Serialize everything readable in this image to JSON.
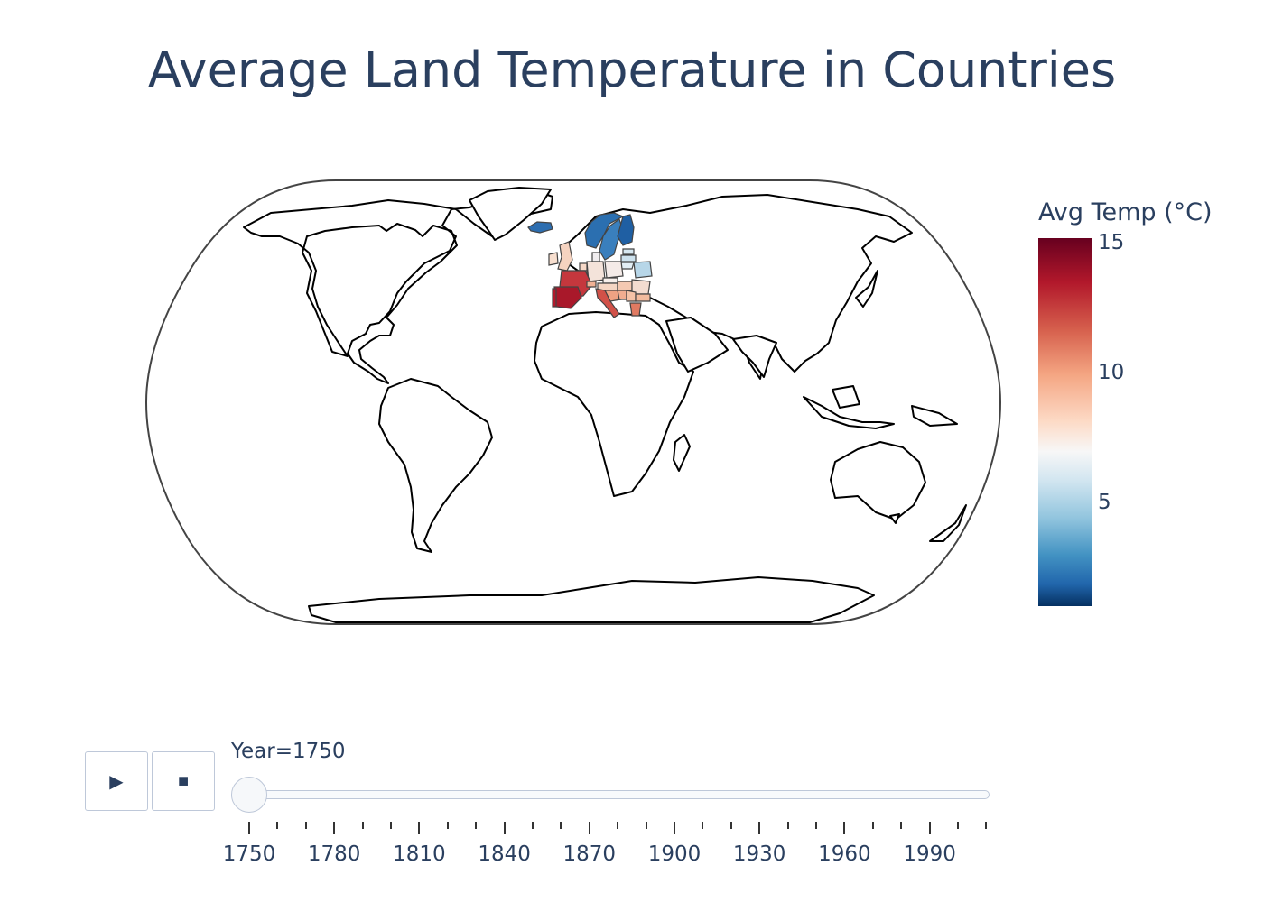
{
  "title": "Average Land Temperature in Countries",
  "colorbar": {
    "title": "Avg Temp (°C)",
    "ticks": [
      {
        "value": 15,
        "label": "15"
      },
      {
        "value": 10,
        "label": "10"
      },
      {
        "value": 5,
        "label": "5"
      }
    ],
    "range": [
      1,
      15
    ],
    "colorscale": "RdBu_r",
    "colors": [
      "#67001f",
      "#b2182b",
      "#d6604d",
      "#f4a582",
      "#fddbc7",
      "#f7f7f7",
      "#d1e5f0",
      "#92c5de",
      "#4393c3",
      "#2166ac",
      "#053061"
    ]
  },
  "map": {
    "projection": "natural earth",
    "shaded_countries": [
      {
        "name": "Spain",
        "temp": 14.5
      },
      {
        "name": "Portugal",
        "temp": 14.8
      },
      {
        "name": "Italy",
        "temp": 13.2
      },
      {
        "name": "France",
        "temp": 12.3
      },
      {
        "name": "Greece",
        "temp": 12.8
      },
      {
        "name": "Croatia",
        "temp": 11.2
      },
      {
        "name": "Serbia",
        "temp": 10.6
      },
      {
        "name": "Bosnia",
        "temp": 10.8
      },
      {
        "name": "Hungary",
        "temp": 10.2
      },
      {
        "name": "Bulgaria",
        "temp": 10.5
      },
      {
        "name": "Romania",
        "temp": 9.6
      },
      {
        "name": "Switzerland",
        "temp": 11.0
      },
      {
        "name": "Austria",
        "temp": 9.8
      },
      {
        "name": "Germany",
        "temp": 9.1
      },
      {
        "name": "Belgium",
        "temp": 10.4
      },
      {
        "name": "Netherlands",
        "temp": 9.6
      },
      {
        "name": "United Kingdom",
        "temp": 9.4
      },
      {
        "name": "Ireland",
        "temp": 9.9
      },
      {
        "name": "Czechia",
        "temp": 8.7
      },
      {
        "name": "Poland",
        "temp": 8.4
      },
      {
        "name": "Denmark",
        "temp": 8.2
      },
      {
        "name": "Lithuania",
        "temp": 7.1
      },
      {
        "name": "Latvia",
        "temp": 6.8
      },
      {
        "name": "Estonia",
        "temp": 6.3
      },
      {
        "name": "Belarus",
        "temp": 6.1
      },
      {
        "name": "Norway",
        "temp": 2.2
      },
      {
        "name": "Sweden",
        "temp": 3.5
      },
      {
        "name": "Finland",
        "temp": 2.3
      },
      {
        "name": "Iceland",
        "temp": 2.4
      }
    ]
  },
  "animation": {
    "play_label": "▶",
    "stop_label": "■",
    "slider_prefix": "Year=",
    "current_year": "1750",
    "year_range": [
      1750,
      2013
    ],
    "ticks": [
      "1750",
      "1780",
      "1810",
      "1840",
      "1870",
      "1900",
      "1930",
      "1960",
      "1990"
    ]
  }
}
